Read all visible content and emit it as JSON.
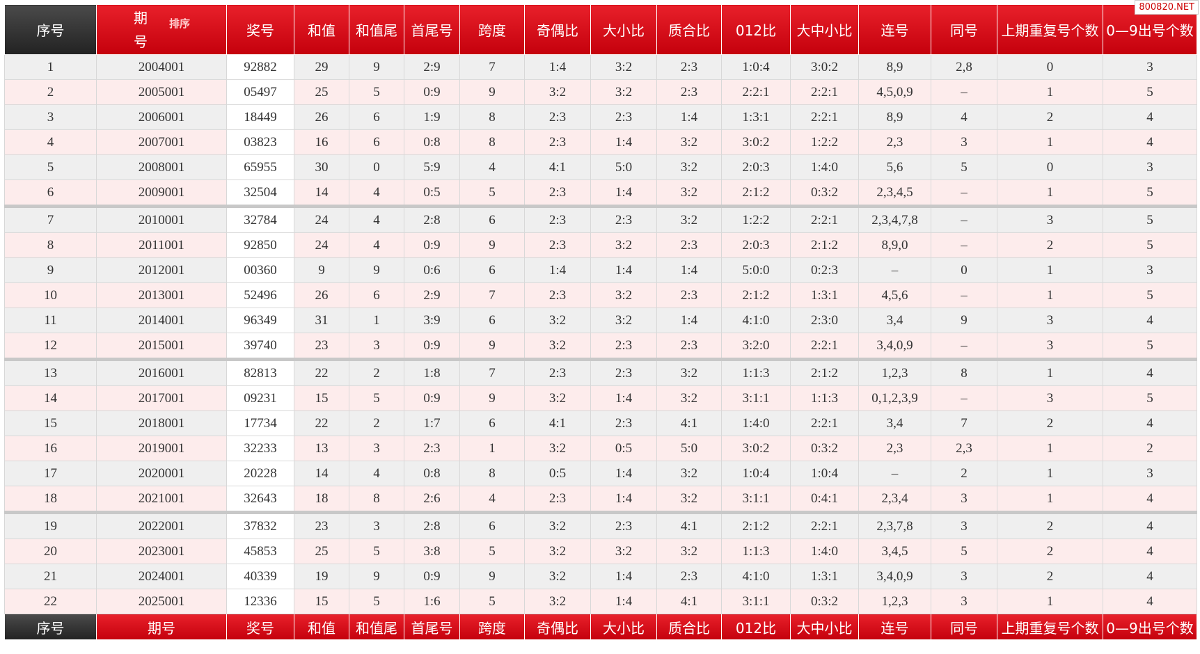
{
  "watermark": "800820.NET",
  "header": {
    "columns": [
      "序号",
      "期号",
      "奖号",
      "和值",
      "和值尾",
      "首尾号",
      "跨度",
      "奇偶比",
      "大小比",
      "质合比",
      "012比",
      "大中小比",
      "连号",
      "同号",
      "上期重复号个数",
      "0—9出号个数"
    ],
    "sort": "排序"
  },
  "table": {
    "rows": [
      [
        "1",
        "2004001",
        "92882",
        "29",
        "9",
        "2:9",
        "7",
        "1:4",
        "3:2",
        "2:3",
        "1:0:4",
        "3:0:2",
        "8,9",
        "2,8",
        "0",
        "3"
      ],
      [
        "2",
        "2005001",
        "05497",
        "25",
        "5",
        "0:9",
        "9",
        "3:2",
        "3:2",
        "2:3",
        "2:2:1",
        "2:2:1",
        "4,5,0,9",
        "–",
        "1",
        "5"
      ],
      [
        "3",
        "2006001",
        "18449",
        "26",
        "6",
        "1:9",
        "8",
        "2:3",
        "2:3",
        "1:4",
        "1:3:1",
        "2:2:1",
        "8,9",
        "4",
        "2",
        "4"
      ],
      [
        "4",
        "2007001",
        "03823",
        "16",
        "6",
        "0:8",
        "8",
        "2:3",
        "1:4",
        "3:2",
        "3:0:2",
        "1:2:2",
        "2,3",
        "3",
        "1",
        "4"
      ],
      [
        "5",
        "2008001",
        "65955",
        "30",
        "0",
        "5:9",
        "4",
        "4:1",
        "5:0",
        "3:2",
        "2:0:3",
        "1:4:0",
        "5,6",
        "5",
        "0",
        "3"
      ],
      [
        "6",
        "2009001",
        "32504",
        "14",
        "4",
        "0:5",
        "5",
        "2:3",
        "1:4",
        "3:2",
        "2:1:2",
        "0:3:2",
        "2,3,4,5",
        "–",
        "1",
        "5"
      ],
      [
        "7",
        "2010001",
        "32784",
        "24",
        "4",
        "2:8",
        "6",
        "2:3",
        "2:3",
        "3:2",
        "1:2:2",
        "2:2:1",
        "2,3,4,7,8",
        "–",
        "3",
        "5"
      ],
      [
        "8",
        "2011001",
        "92850",
        "24",
        "4",
        "0:9",
        "9",
        "2:3",
        "3:2",
        "2:3",
        "2:0:3",
        "2:1:2",
        "8,9,0",
        "–",
        "2",
        "5"
      ],
      [
        "9",
        "2012001",
        "00360",
        "9",
        "9",
        "0:6",
        "6",
        "1:4",
        "1:4",
        "1:4",
        "5:0:0",
        "0:2:3",
        "–",
        "0",
        "1",
        "3"
      ],
      [
        "10",
        "2013001",
        "52496",
        "26",
        "6",
        "2:9",
        "7",
        "2:3",
        "3:2",
        "2:3",
        "2:1:2",
        "1:3:1",
        "4,5,6",
        "–",
        "1",
        "5"
      ],
      [
        "11",
        "2014001",
        "96349",
        "31",
        "1",
        "3:9",
        "6",
        "3:2",
        "3:2",
        "1:4",
        "4:1:0",
        "2:3:0",
        "3,4",
        "9",
        "3",
        "4"
      ],
      [
        "12",
        "2015001",
        "39740",
        "23",
        "3",
        "0:9",
        "9",
        "3:2",
        "2:3",
        "2:3",
        "3:2:0",
        "2:2:1",
        "3,4,0,9",
        "–",
        "3",
        "5"
      ],
      [
        "13",
        "2016001",
        "82813",
        "22",
        "2",
        "1:8",
        "7",
        "2:3",
        "2:3",
        "3:2",
        "1:1:3",
        "2:1:2",
        "1,2,3",
        "8",
        "1",
        "4"
      ],
      [
        "14",
        "2017001",
        "09231",
        "15",
        "5",
        "0:9",
        "9",
        "3:2",
        "1:4",
        "3:2",
        "3:1:1",
        "1:1:3",
        "0,1,2,3,9",
        "–",
        "3",
        "5"
      ],
      [
        "15",
        "2018001",
        "17734",
        "22",
        "2",
        "1:7",
        "6",
        "4:1",
        "2:3",
        "4:1",
        "1:4:0",
        "2:2:1",
        "3,4",
        "7",
        "2",
        "4"
      ],
      [
        "16",
        "2019001",
        "32233",
        "13",
        "3",
        "2:3",
        "1",
        "3:2",
        "0:5",
        "5:0",
        "3:0:2",
        "0:3:2",
        "2,3",
        "2,3",
        "1",
        "2"
      ],
      [
        "17",
        "2020001",
        "20228",
        "14",
        "4",
        "0:8",
        "8",
        "0:5",
        "1:4",
        "3:2",
        "1:0:4",
        "1:0:4",
        "–",
        "2",
        "1",
        "3"
      ],
      [
        "18",
        "2021001",
        "32643",
        "18",
        "8",
        "2:6",
        "4",
        "2:3",
        "1:4",
        "3:2",
        "3:1:1",
        "0:4:1",
        "2,3,4",
        "3",
        "1",
        "4"
      ],
      [
        "19",
        "2022001",
        "37832",
        "23",
        "3",
        "2:8",
        "6",
        "3:2",
        "2:3",
        "4:1",
        "2:1:2",
        "2:2:1",
        "2,3,7,8",
        "3",
        "2",
        "4"
      ],
      [
        "20",
        "2023001",
        "45853",
        "25",
        "5",
        "3:8",
        "5",
        "3:2",
        "3:2",
        "3:2",
        "1:1:3",
        "1:4:0",
        "3,4,5",
        "5",
        "2",
        "4"
      ],
      [
        "21",
        "2024001",
        "40339",
        "19",
        "9",
        "0:9",
        "9",
        "3:2",
        "1:4",
        "2:3",
        "4:1:0",
        "1:3:1",
        "3,4,0,9",
        "3",
        "2",
        "4"
      ],
      [
        "22",
        "2025001",
        "12336",
        "15",
        "5",
        "1:6",
        "5",
        "3:2",
        "1:4",
        "4:1",
        "3:1:1",
        "0:3:2",
        "1,2,3",
        "3",
        "1",
        "4"
      ]
    ]
  },
  "footer": {
    "columns": [
      "序号",
      "期号",
      "奖号",
      "和值",
      "和值尾",
      "首尾号",
      "跨度",
      "奇偶比",
      "大小比",
      "质合比",
      "012比",
      "大中小比",
      "连号",
      "同号",
      "上期重复号个数",
      "0—9出号个数"
    ]
  }
}
